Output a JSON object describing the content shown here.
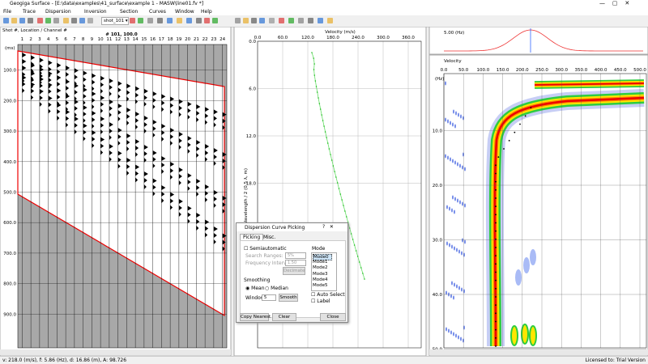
{
  "window": {
    "title": "Geogiga Surface - [E:\\data\\examples\\41_surface\\example 1 - MASW\\line01.fv *]"
  },
  "menu": [
    "File",
    "Trace",
    "Dispersion",
    "Inversion",
    "Section",
    "Curves",
    "Window",
    "Help"
  ],
  "toolbar": {
    "shot_combo": "shot_101"
  },
  "shot_panel": {
    "header": "Shot #, Location / Channel #",
    "shot_label": "# 101, 100.0",
    "channels": [
      "1",
      "2",
      "3",
      "4",
      "5",
      "6",
      "7",
      "8",
      "9",
      "10",
      "11",
      "12",
      "13",
      "14",
      "15",
      "16",
      "17",
      "18",
      "19",
      "20",
      "21",
      "22",
      "23",
      "24"
    ],
    "time_unit": "(ms)",
    "time_ticks": [
      "100.0",
      "200.0",
      "300.0",
      "400.0",
      "500.0",
      "600.0",
      "700.0",
      "800.0",
      "900.0"
    ]
  },
  "curve_panel": {
    "x_title": "Velocity (m/s)",
    "x_ticks": [
      "0.0",
      "60.0",
      "120.0",
      "180.0",
      "240.0",
      "300.0",
      "360.0"
    ],
    "y_title": "Wavelength / 2 (0.5 λ, m)",
    "y_ticks": [
      "0.0",
      "6.0",
      "12.0",
      "18.0"
    ]
  },
  "spectrum_panel": {
    "freq_label": "5.00 (Hz)"
  },
  "dispersion_panel": {
    "title": "Velocity",
    "x_ticks": [
      "0.0",
      "50.0",
      "100.0",
      "150.0",
      "200.0",
      "250.0",
      "300.0",
      "350.0",
      "400.0",
      "450.0",
      "500.0"
    ],
    "y_unit": "(Hz)",
    "y_ticks": [
      "10.0",
      "20.0",
      "30.0",
      "40.0",
      "50.0"
    ]
  },
  "dialog": {
    "title": "Dispersion Curve Picking",
    "tabs": [
      "Picking",
      "Misc."
    ],
    "semiautomatic": "Semiautomatic",
    "search_ranges": "Search Ranges:",
    "search_value": "5%",
    "freq_interval": "Frequency Interval (Hz):",
    "freq_value": "1.50",
    "decimate": "Decimate",
    "mode_label": "Mode",
    "modes": [
      "Mode0",
      "Mode1",
      "Mode2",
      "Mode3",
      "Mode4",
      "Mode5"
    ],
    "smoothing": "Smoothing",
    "mean": "Mean",
    "median": "Median",
    "window": "Window:",
    "window_value": "5",
    "smooth": "Smooth",
    "auto_select": "Auto Select",
    "label": "Label",
    "copy_nearest": "Copy Nearest",
    "clear": "Clear",
    "close": "Close"
  },
  "status": {
    "left": "v: 218.0 (m/s), f: 5.86 (Hz), d: 16.86 (m), A: 98.726",
    "right": "Licensed to: Trial Version"
  }
}
